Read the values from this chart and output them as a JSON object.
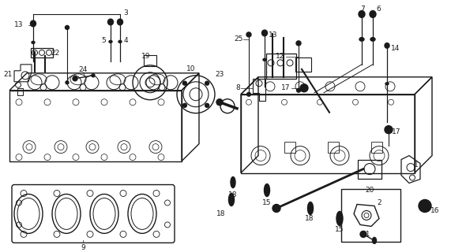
{
  "bg_color": "#ffffff",
  "line_color": "#1a1a1a",
  "fig_width": 5.71,
  "fig_height": 3.2,
  "dpi": 100
}
